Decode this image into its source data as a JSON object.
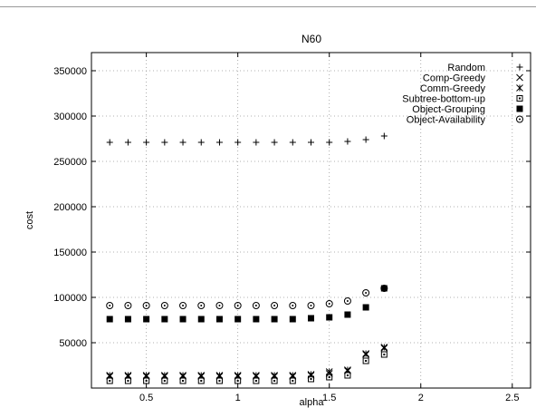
{
  "chart_data": {
    "type": "scatter",
    "title": "N60",
    "xlabel": "alpha",
    "ylabel": "cost",
    "xlim": [
      0.2,
      2.6
    ],
    "ylim": [
      0,
      370000
    ],
    "xticks": [
      0.5,
      1,
      1.5,
      2,
      2.5
    ],
    "xtick_labels": [
      "0.5",
      "1",
      "1.5",
      "2",
      "2.5"
    ],
    "yticks": [
      50000,
      100000,
      150000,
      200000,
      250000,
      300000,
      350000
    ],
    "ytick_labels": [
      "50000",
      "100000",
      "150000",
      "200000",
      "250000",
      "300000",
      "350000"
    ],
    "grid": true,
    "legend_position": "top-right",
    "x": [
      0.3,
      0.4,
      0.5,
      0.6,
      0.7,
      0.8,
      0.9,
      1.0,
      1.1,
      1.2,
      1.3,
      1.4,
      1.5,
      1.6,
      1.7,
      1.8
    ],
    "series": [
      {
        "name": "Random",
        "marker": "plus",
        "values": [
          271000,
          271000,
          271000,
          271000,
          271000,
          271000,
          271000,
          271000,
          271000,
          271000,
          271000,
          271000,
          271000,
          272000,
          274000,
          278000
        ]
      },
      {
        "name": "Comp-Greedy",
        "marker": "cross",
        "values": [
          13000,
          13000,
          13000,
          13000,
          13000,
          13000,
          13000,
          13000,
          13000,
          13000,
          13000,
          14000,
          16000,
          19000,
          37000,
          44000
        ]
      },
      {
        "name": "Comm-Greedy",
        "marker": "asterisk",
        "values": [
          14000,
          14000,
          14000,
          14000,
          14000,
          14000,
          14000,
          14000,
          14000,
          14000,
          14000,
          15000,
          18000,
          20000,
          38000,
          45000
        ]
      },
      {
        "name": "Subtree-bottom-up",
        "marker": "open-square",
        "values": [
          8000,
          8000,
          8000,
          8000,
          8000,
          8000,
          8000,
          8000,
          8000,
          8000,
          8000,
          10000,
          12000,
          14000,
          30000,
          37000
        ]
      },
      {
        "name": "Object-Grouping",
        "marker": "filled-square",
        "values": [
          76000,
          76000,
          76000,
          76000,
          76000,
          76000,
          76000,
          76000,
          76000,
          76000,
          76000,
          77000,
          78000,
          81000,
          89000,
          110000
        ]
      },
      {
        "name": "Object-Availability",
        "marker": "open-circle",
        "values": [
          91000,
          91000,
          91000,
          91000,
          91000,
          91000,
          91000,
          91000,
          91000,
          91000,
          91000,
          91000,
          93000,
          96000,
          105000,
          110000
        ]
      }
    ]
  }
}
